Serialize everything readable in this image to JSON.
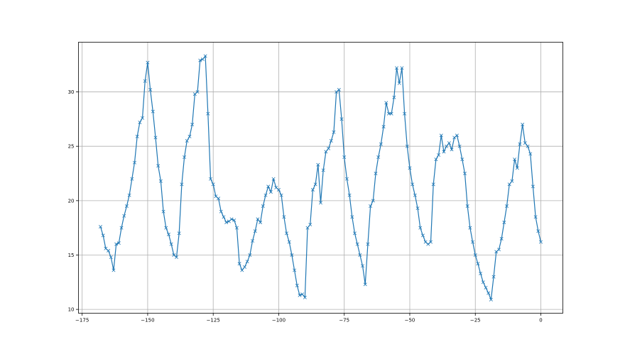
{
  "chart_data": {
    "type": "line",
    "marker": "x",
    "color": "#1f77b4",
    "grid": true,
    "title": "",
    "xlabel": "",
    "ylabel": "",
    "xlim": [
      -176.4,
      8.4
    ],
    "ylim": [
      9.65,
      34.57
    ],
    "xticks": [
      -175,
      -150,
      -125,
      -100,
      -75,
      -50,
      -25,
      0
    ],
    "yticks": [
      10,
      15,
      20,
      25,
      30
    ],
    "x": [
      -168,
      -167,
      -166,
      -165,
      -164,
      -163,
      -162,
      -161,
      -160,
      -159,
      -158,
      -157,
      -156,
      -155,
      -154,
      -153,
      -152,
      -151,
      -150,
      -149,
      -148,
      -147,
      -146,
      -145,
      -144,
      -143,
      -142,
      -141,
      -140,
      -139,
      -138,
      -137,
      -136,
      -135,
      -134,
      -133,
      -132,
      -131,
      -130,
      -129,
      -128,
      -127,
      -126,
      -125,
      -124,
      -123,
      -122,
      -121,
      -120,
      -119,
      -118,
      -117,
      -116,
      -115,
      -114,
      -113,
      -112,
      -111,
      -110,
      -109,
      -108,
      -107,
      -106,
      -105,
      -104,
      -103,
      -102,
      -101,
      -100,
      -99,
      -98,
      -97,
      -96,
      -95,
      -94,
      -93,
      -92,
      -91,
      -90,
      -89,
      -88,
      -87,
      -86,
      -85,
      -84,
      -83,
      -82,
      -81,
      -80,
      -79,
      -78,
      -77,
      -76,
      -75,
      -74,
      -73,
      -72,
      -71,
      -70,
      -69,
      -68,
      -67,
      -66,
      -65,
      -64,
      -63,
      -62,
      -61,
      -60,
      -59,
      -58,
      -57,
      -56,
      -55,
      -54,
      -53,
      -52,
      -51,
      -50,
      -49,
      -48,
      -47,
      -46,
      -45,
      -44,
      -43,
      -42,
      -41,
      -40,
      -39,
      -38,
      -37,
      -36,
      -35,
      -34,
      -33,
      -32,
      -31,
      -30,
      -29,
      -28,
      -27,
      -26,
      -25,
      -24,
      -23,
      -22,
      -21,
      -20,
      -19,
      -18,
      -17,
      -16,
      -15,
      -14,
      -13,
      -12,
      -11,
      -10,
      -9,
      -8,
      -7,
      -6,
      -5,
      -4,
      -3,
      -2,
      -1,
      0
    ],
    "y": [
      17.6,
      16.8,
      15.6,
      15.4,
      14.8,
      13.6,
      16.0,
      16.1,
      17.5,
      18.6,
      19.5,
      20.5,
      22.0,
      23.5,
      25.9,
      27.2,
      27.6,
      31.0,
      32.7,
      30.2,
      28.2,
      25.8,
      23.2,
      21.8,
      19.0,
      17.5,
      16.9,
      16.0,
      15.0,
      14.8,
      17.0,
      21.5,
      24.0,
      25.5,
      25.9,
      27.0,
      29.8,
      30.0,
      32.9,
      33.0,
      33.3,
      28.0,
      22.0,
      21.5,
      20.4,
      20.2,
      19.0,
      18.5,
      18.0,
      18.1,
      18.3,
      18.2,
      17.5,
      14.2,
      13.6,
      13.9,
      14.4,
      15.0,
      16.3,
      17.2,
      18.3,
      18.0,
      19.5,
      20.5,
      21.3,
      20.8,
      22.0,
      21.2,
      21.0,
      20.5,
      18.5,
      17.0,
      16.2,
      15.0,
      13.6,
      12.2,
      11.3,
      11.4,
      11.1,
      17.5,
      17.8,
      21.0,
      21.5,
      23.3,
      19.8,
      22.8,
      24.5,
      24.8,
      25.5,
      26.3,
      30.0,
      30.2,
      27.5,
      24.0,
      22.0,
      20.5,
      18.5,
      17.0,
      16.0,
      15.0,
      14.0,
      12.3,
      16.0,
      19.5,
      20.0,
      22.5,
      24.0,
      25.2,
      26.8,
      29.0,
      28.0,
      28.0,
      29.5,
      32.2,
      30.8,
      32.2,
      28.0,
      25.0,
      23.0,
      21.5,
      20.5,
      19.3,
      17.5,
      16.8,
      16.2,
      16.0,
      16.2,
      21.5,
      23.8,
      24.2,
      26.0,
      24.5,
      25.0,
      25.3,
      24.7,
      25.8,
      26.0,
      25.0,
      23.8,
      22.5,
      19.5,
      17.5,
      16.2,
      15.0,
      14.2,
      13.3,
      12.5,
      12.0,
      11.5,
      10.9,
      13.0,
      15.3,
      15.5,
      16.5,
      18.0,
      19.5,
      21.5,
      21.8,
      23.8,
      23.0,
      25.2,
      27.0,
      25.3,
      25.0,
      24.3,
      21.3,
      18.5,
      17.2,
      16.2
    ]
  }
}
